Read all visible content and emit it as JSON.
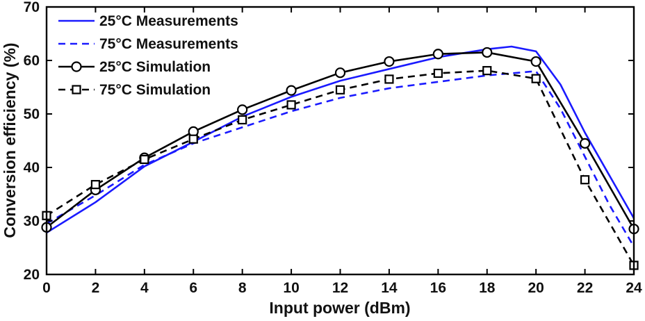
{
  "chart_data": {
    "type": "line",
    "title": "",
    "xlabel": "Input power (dBm)",
    "ylabel": "Conversion efficiency (%)",
    "xlim": [
      0,
      24
    ],
    "ylim": [
      20,
      70
    ],
    "xticks": [
      0,
      2,
      4,
      6,
      8,
      10,
      12,
      14,
      16,
      18,
      20,
      22,
      24
    ],
    "yticks": [
      20,
      30,
      40,
      50,
      60,
      70
    ],
    "grid": false,
    "legend_position": "top-left",
    "series": [
      {
        "name": "25°C Measurements",
        "color": "#1a1aff",
        "dash": "solid",
        "marker": "none",
        "x": [
          0,
          2,
          4,
          6,
          8,
          10,
          12,
          14,
          16,
          18,
          19,
          20,
          21,
          22,
          23,
          24
        ],
        "y": [
          27.8,
          33.5,
          40.2,
          44.8,
          49.5,
          53.2,
          56.2,
          58.4,
          60.6,
          62.1,
          62.6,
          61.7,
          55.5,
          46.5,
          38.5,
          30.5
        ]
      },
      {
        "name": "75°C Measurements",
        "color": "#1a1aff",
        "dash": "dashed",
        "marker": "none",
        "x": [
          0,
          2,
          4,
          6,
          8,
          10,
          12,
          14,
          16,
          18,
          20,
          21,
          22,
          23,
          24
        ],
        "y": [
          29.5,
          34.8,
          40.5,
          44.5,
          47.5,
          50.5,
          53.0,
          54.8,
          56.0,
          57.2,
          58.0,
          51.0,
          42.0,
          33.0,
          25.2
        ]
      },
      {
        "name": "25°C Simulation",
        "color": "#000000",
        "dash": "solid",
        "marker": "circle",
        "x": [
          0,
          2,
          4,
          6,
          8,
          10,
          12,
          14,
          16,
          18,
          20,
          22,
          24
        ],
        "y": [
          28.8,
          35.8,
          41.8,
          46.7,
          50.8,
          54.4,
          57.7,
          59.8,
          61.2,
          61.5,
          59.8,
          44.5,
          28.5
        ]
      },
      {
        "name": "75°C Simulation",
        "color": "#000000",
        "dash": "dashed",
        "marker": "square",
        "x": [
          0,
          2,
          4,
          6,
          8,
          10,
          12,
          14,
          16,
          18,
          20,
          22,
          24
        ],
        "y": [
          31.0,
          36.8,
          41.5,
          45.3,
          48.9,
          51.7,
          54.5,
          56.5,
          57.6,
          58.1,
          56.6,
          37.7,
          21.7
        ]
      }
    ]
  }
}
